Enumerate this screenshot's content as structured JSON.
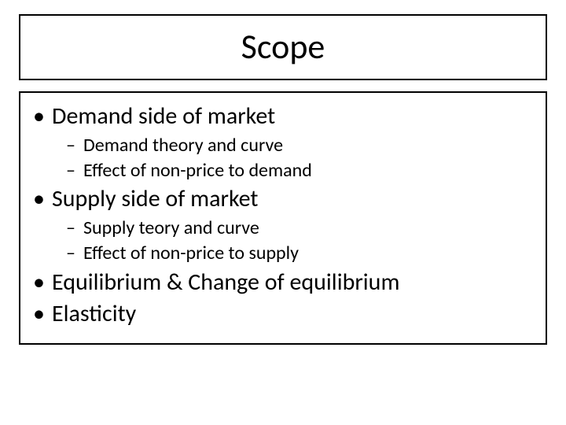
{
  "slide": {
    "title": "Scope",
    "title_fontsize": 44,
    "body_fontsize_lvl1": 30,
    "body_fontsize_lvl2": 24,
    "text_color": "#000000",
    "background_color": "#ffffff",
    "border_color": "#000000",
    "border_width": 2,
    "bullets": {
      "b1": "Demand side of market",
      "b1_1": "Demand theory and curve",
      "b1_2": "Effect of non-price to demand",
      "b2": "Supply side of market",
      "b2_1": "Supply teory and curve",
      "b2_2": "Effect of non-price to supply",
      "b3": "Equilibrium & Change of equilibrium",
      "b4": "Elasticity"
    }
  }
}
